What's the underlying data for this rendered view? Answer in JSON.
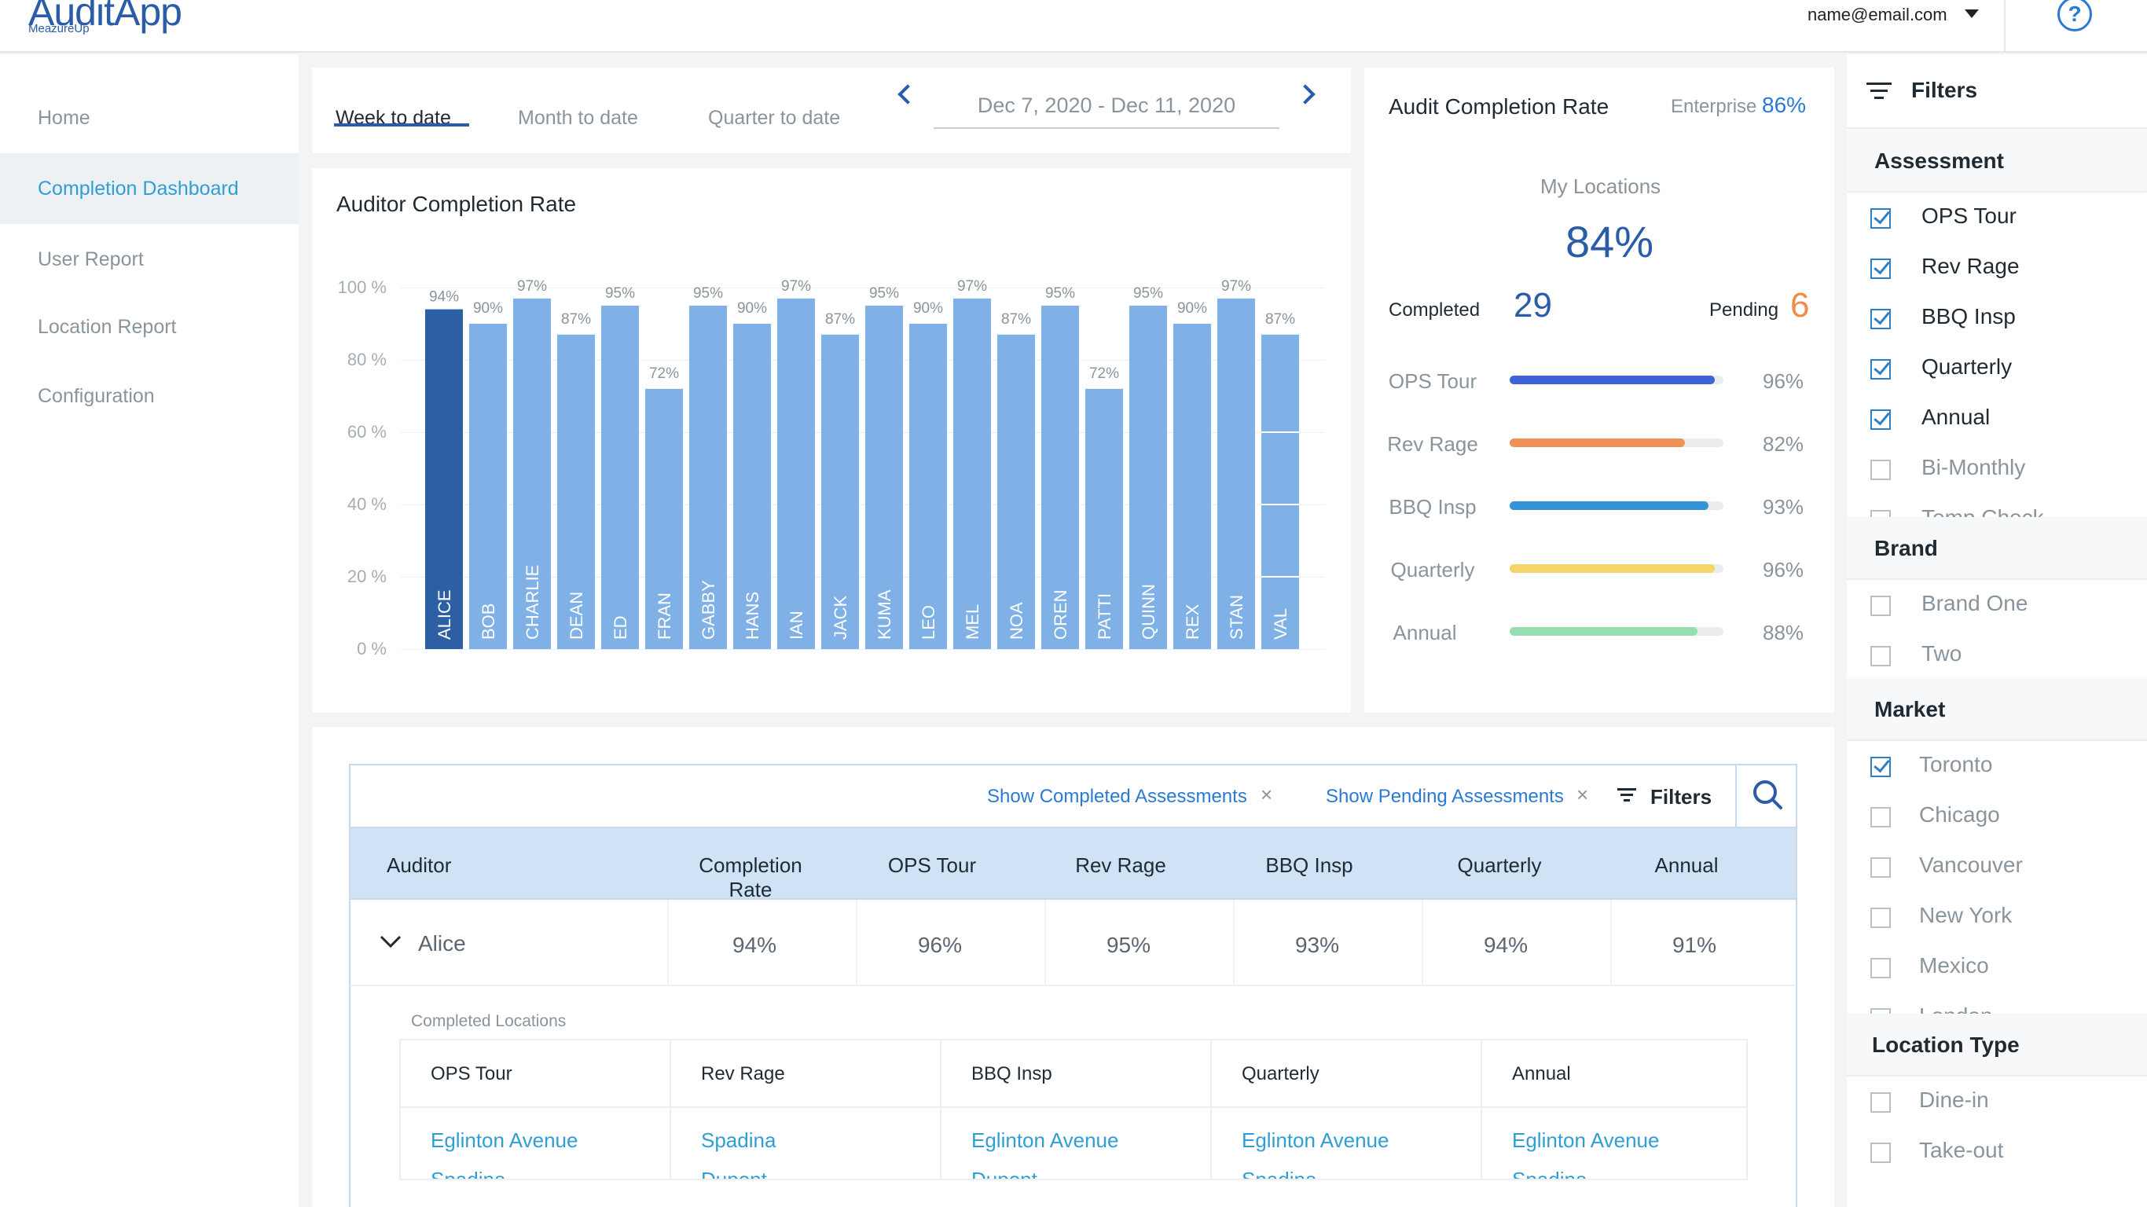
{
  "app": {
    "title": "AuditApp",
    "subtitle": "MeazureUp"
  },
  "header": {
    "user_email": "name@email.com"
  },
  "sidebar": {
    "items": [
      {
        "label": "Home",
        "active": false
      },
      {
        "label": "Completion Dashboard",
        "active": true
      },
      {
        "label": "User Report",
        "active": false
      },
      {
        "label": "Location Report",
        "active": false
      },
      {
        "label": "Configuration",
        "active": false
      }
    ]
  },
  "date_tabs": {
    "tabs": [
      "Week to date",
      "Month to date",
      "Quarter to date"
    ],
    "active": "Week to date",
    "range": "Dec 7, 2020 - Dec 11, 2020"
  },
  "auditor_chart": {
    "title": "Auditor Completion Rate"
  },
  "chart_data": {
    "type": "bar",
    "yticks": [
      "100 %",
      "80 %",
      "60 %",
      "40 %",
      "20 %",
      "0 %"
    ],
    "ylim": [
      0,
      100
    ],
    "categories": [
      "ALICE",
      "BOB",
      "CHARLIE",
      "DEAN",
      "ED",
      "FRAN",
      "GABBY",
      "HANS",
      "IAN",
      "JACK",
      "KUMA",
      "LEO",
      "MEL",
      "NOA",
      "OREN",
      "PATTI",
      "QUINN",
      "REX",
      "STAN",
      "VAL"
    ],
    "values": [
      94,
      90,
      97,
      87,
      95,
      72,
      95,
      90,
      97,
      87,
      95,
      90,
      97,
      87,
      95,
      72,
      95,
      90,
      97,
      87
    ],
    "labels": [
      "94%",
      "90%",
      "97%",
      "87%",
      "95%",
      "72%",
      "95%",
      "90%",
      "97%",
      "87%",
      "95%",
      "90%",
      "97%",
      "87%",
      "95%",
      "72%",
      "95%",
      "90%",
      "97%",
      "87%"
    ],
    "highlighted": "ALICE",
    "colors": {
      "bar": "#7fb1e6",
      "highlight": "#2c5fa3"
    }
  },
  "audit_panel": {
    "title": "Audit Completion Rate",
    "enterprise_label": "Enterprise",
    "enterprise_value": "86%",
    "my_locations_label": "My Locations",
    "my_locations_value": "84%",
    "completed_label": "Completed",
    "completed_value": "29",
    "pending_label": "Pending",
    "pending_value": "6",
    "progress": [
      {
        "label": "OPS Tour",
        "value": 96,
        "pct": "96%",
        "color": "#3e63d6"
      },
      {
        "label": "Rev Rage",
        "value": 82,
        "pct": "82%",
        "color": "#f0915a"
      },
      {
        "label": "BBQ Insp",
        "value": 93,
        "pct": "93%",
        "color": "#3393d6"
      },
      {
        "label": "Quarterly",
        "value": 96,
        "pct": "96%",
        "color": "#f7d468"
      },
      {
        "label": "Annual",
        "value": 88,
        "pct": "88%",
        "color": "#96ddb0"
      }
    ]
  },
  "filters": {
    "title": "Filters",
    "sections": [
      {
        "title": "Assessment",
        "options": [
          {
            "label": "OPS Tour",
            "checked": true
          },
          {
            "label": "Rev Rage",
            "checked": true
          },
          {
            "label": "BBQ Insp",
            "checked": true
          },
          {
            "label": "Quarterly",
            "checked": true
          },
          {
            "label": "Annual",
            "checked": true
          },
          {
            "label": "Bi-Monthly",
            "checked": false
          },
          {
            "label": "Temp Check",
            "checked": false
          }
        ]
      },
      {
        "title": "Brand",
        "options": [
          {
            "label": "Brand One",
            "checked": false
          },
          {
            "label": "Two",
            "checked": false
          }
        ]
      },
      {
        "title": "Market",
        "options": [
          {
            "label": "Toronto",
            "checked": true
          },
          {
            "label": "Chicago",
            "checked": false
          },
          {
            "label": "Vancouver",
            "checked": false
          },
          {
            "label": "New York",
            "checked": false
          },
          {
            "label": "Mexico",
            "checked": false
          },
          {
            "label": "London",
            "checked": false
          }
        ]
      },
      {
        "title": "Location Type",
        "options": [
          {
            "label": "Dine-in",
            "checked": false
          },
          {
            "label": "Take-out",
            "checked": false
          }
        ]
      }
    ]
  },
  "table": {
    "chips": [
      "Show Completed Assessments",
      "Show Pending Assessments"
    ],
    "filters_label": "Filters",
    "columns": [
      "Auditor",
      "Completion Rate",
      "OPS Tour",
      "Rev Rage",
      "BBQ Insp",
      "Quarterly",
      "Annual"
    ],
    "rows": [
      {
        "auditor": "Alice",
        "completion": "94%",
        "ops": "96%",
        "rev": "95%",
        "bbq": "93%",
        "quarterly": "94%",
        "annual": "91%"
      }
    ],
    "completed_locations_label": "Completed Locations",
    "locations": [
      {
        "header": "OPS Tour",
        "items": [
          "Eglinton Avenue",
          "Spadina"
        ]
      },
      {
        "header": "Rev Rage",
        "items": [
          "Spadina",
          "Dupont"
        ]
      },
      {
        "header": "BBQ Insp",
        "items": [
          "Eglinton Avenue",
          "Dupont"
        ]
      },
      {
        "header": "Quarterly",
        "items": [
          "Eglinton Avenue",
          "Spadina"
        ]
      },
      {
        "header": "Annual",
        "items": [
          "Eglinton Avenue",
          "Spadina"
        ]
      }
    ]
  }
}
